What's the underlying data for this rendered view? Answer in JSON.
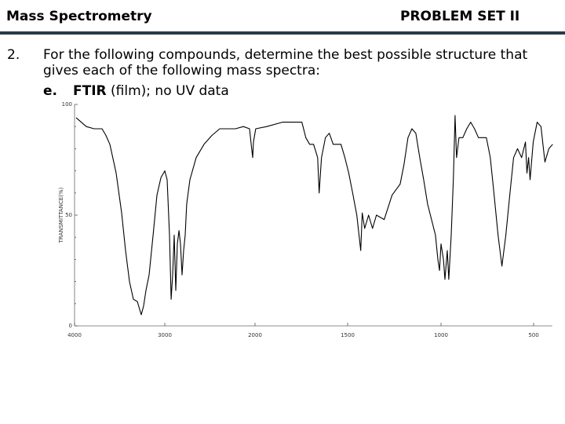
{
  "header": {
    "left": "Mass Spectrometry",
    "right": "PROBLEM SET II"
  },
  "problem": {
    "number": "2.",
    "text": "For the following compounds, determine the best possible structure that gives each of the following mass spectra:",
    "item_letter": "e.",
    "item_bold": "FTIR",
    "item_text": " (film); no UV data"
  },
  "chart_data": {
    "type": "line",
    "ylabel": "TRANSMITTANCE(%)",
    "color": "#000000",
    "xlim": [
      4000,
      400
    ],
    "xticks": [
      4000,
      3000,
      2000,
      1500,
      1000,
      500
    ],
    "ylim": [
      0,
      100
    ],
    "yticks": [
      0,
      50,
      100
    ],
    "yticks_minor": [
      10,
      20,
      30,
      40,
      60,
      70,
      80,
      90
    ],
    "x": [
      3983,
      3870,
      3783,
      3696,
      3652,
      3609,
      3539,
      3478,
      3435,
      3391,
      3348,
      3304,
      3261,
      3235,
      3209,
      3174,
      3130,
      3087,
      3043,
      3000,
      2974,
      2948,
      2930,
      2913,
      2896,
      2878,
      2861,
      2843,
      2826,
      2809,
      2791,
      2774,
      2757,
      2722,
      2652,
      2565,
      2478,
      2391,
      2304,
      2217,
      2130,
      2061,
      2043,
      2026,
      2017,
      1996,
      1937,
      1852,
      1747,
      1726,
      1705,
      1684,
      1662,
      1654,
      1641,
      1620,
      1599,
      1578,
      1536,
      1515,
      1494,
      1473,
      1451,
      1439,
      1430,
      1422,
      1409,
      1388,
      1367,
      1346,
      1304,
      1262,
      1219,
      1198,
      1177,
      1156,
      1135,
      1114,
      1093,
      1072,
      1051,
      1030,
      1017,
      1008,
      1000,
      987,
      979,
      966,
      958,
      945,
      933,
      924,
      916,
      903,
      882,
      861,
      840,
      819,
      798,
      755,
      734,
      713,
      692,
      671,
      650,
      629,
      608,
      587,
      565,
      544,
      536,
      527,
      519,
      502,
      481,
      460,
      439,
      418,
      397
    ],
    "series": [
      {
        "values": [
          94,
          90,
          89,
          89,
          86,
          82,
          69,
          51,
          34,
          20,
          12,
          11,
          5,
          9,
          16,
          23,
          41,
          59,
          67,
          70,
          66,
          41,
          12,
          23,
          41,
          16,
          37,
          43,
          37,
          23,
          34,
          41,
          55,
          66,
          76,
          82,
          86,
          89,
          89,
          89,
          90,
          89,
          82,
          76,
          83,
          89,
          90,
          92,
          92,
          85,
          82,
          82,
          76,
          60,
          76,
          85,
          87,
          82,
          82,
          76,
          69,
          60,
          50,
          41,
          34,
          51,
          44,
          50,
          44,
          50,
          48,
          59,
          64,
          73,
          85,
          89,
          87,
          76,
          66,
          55,
          48,
          41,
          30,
          25,
          37,
          30,
          21,
          34,
          21,
          41,
          67,
          95,
          76,
          85,
          85,
          89,
          92,
          89,
          85,
          85,
          76,
          59,
          41,
          27,
          41,
          59,
          76,
          80,
          76,
          83,
          69,
          76,
          66,
          83,
          92,
          90,
          74,
          80,
          82
        ]
      }
    ]
  }
}
